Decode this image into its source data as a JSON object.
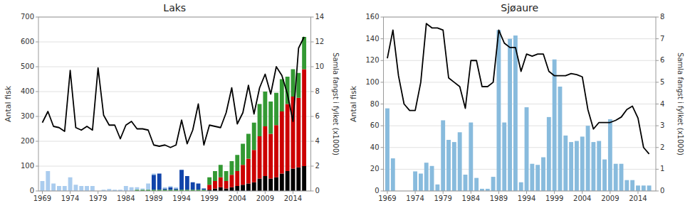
{
  "chart_data": [
    {
      "type": "bar",
      "title": "Laks",
      "stacked": true,
      "grid": true,
      "ylabel": "Antal fisk",
      "y2label": "Samla fangst i fylket (x1000)",
      "x": [
        1969,
        1970,
        1971,
        1972,
        1973,
        1974,
        1975,
        1976,
        1977,
        1978,
        1979,
        1980,
        1981,
        1982,
        1983,
        1984,
        1985,
        1986,
        1987,
        1988,
        1989,
        1990,
        1991,
        1992,
        1993,
        1994,
        1995,
        1996,
        1997,
        1998,
        1999,
        2000,
        2001,
        2002,
        2003,
        2004,
        2005,
        2006,
        2007,
        2008,
        2009,
        2010,
        2011,
        2012,
        2013,
        2014,
        2015,
        2016
      ],
      "xlim": [
        1968.3,
        2017.2
      ],
      "xticks": [
        1969,
        1974,
        1979,
        1984,
        1989,
        1994,
        1999,
        2004,
        2009,
        2014
      ],
      "ylim": [
        0,
        700
      ],
      "yticks": [
        0,
        100,
        200,
        300,
        400,
        500,
        600,
        700
      ],
      "y2lim": [
        0,
        14
      ],
      "y2ticks": [
        0,
        2,
        4,
        6,
        8,
        10,
        12,
        14
      ],
      "series": [
        {
          "color": "#000000",
          "values": [
            0,
            0,
            0,
            0,
            0,
            0,
            0,
            0,
            0,
            0,
            0,
            0,
            0,
            0,
            0,
            0,
            0,
            0,
            0,
            0,
            0,
            0,
            0,
            0,
            0,
            0,
            0,
            0,
            0,
            0,
            5,
            10,
            15,
            10,
            15,
            20,
            25,
            30,
            35,
            50,
            60,
            50,
            55,
            70,
            80,
            90,
            95,
            100
          ]
        },
        {
          "color": "#cc0000",
          "values": [
            0,
            0,
            0,
            0,
            0,
            0,
            0,
            0,
            0,
            0,
            0,
            0,
            0,
            0,
            0,
            0,
            0,
            0,
            0,
            0,
            0,
            0,
            0,
            0,
            0,
            0,
            0,
            0,
            0,
            0,
            20,
            30,
            40,
            30,
            50,
            60,
            80,
            100,
            130,
            170,
            200,
            180,
            210,
            250,
            270,
            290,
            280,
            390
          ]
        },
        {
          "color": "#339933",
          "values": [
            0,
            0,
            0,
            0,
            0,
            0,
            0,
            0,
            0,
            0,
            0,
            0,
            0,
            0,
            0,
            0,
            0,
            5,
            5,
            5,
            5,
            5,
            5,
            5,
            5,
            5,
            5,
            5,
            5,
            5,
            30,
            40,
            50,
            40,
            55,
            65,
            85,
            100,
            110,
            130,
            140,
            130,
            130,
            130,
            110,
            110,
            100,
            130
          ]
        },
        {
          "color": "#1144aa",
          "values": [
            0,
            0,
            0,
            0,
            0,
            0,
            0,
            0,
            0,
            0,
            0,
            0,
            0,
            0,
            0,
            0,
            0,
            0,
            0,
            0,
            60,
            65,
            5,
            10,
            5,
            80,
            55,
            30,
            25,
            5,
            0,
            0,
            0,
            0,
            0,
            0,
            0,
            0,
            0,
            0,
            0,
            0,
            0,
            0,
            0,
            0,
            0,
            0
          ]
        },
        {
          "color": "#aaccee",
          "values": [
            40,
            80,
            30,
            20,
            20,
            55,
            25,
            20,
            20,
            20,
            0,
            5,
            8,
            5,
            5,
            20,
            15,
            10,
            5,
            25,
            5,
            0,
            5,
            5,
            5,
            0,
            0,
            0,
            0,
            0,
            0,
            0,
            0,
            0,
            0,
            0,
            0,
            0,
            0,
            0,
            0,
            0,
            0,
            0,
            0,
            0,
            0,
            0
          ]
        },
        {
          "type": "line",
          "axis": "y2",
          "color": "#000000",
          "values": [
            5.5,
            6.4,
            5.2,
            5.1,
            4.8,
            9.7,
            5.1,
            4.9,
            5.2,
            4.9,
            9.9,
            6.1,
            5.3,
            5.3,
            4.2,
            5.3,
            5.6,
            5.0,
            5.0,
            4.9,
            3.7,
            3.6,
            3.7,
            3.5,
            3.7,
            5.7,
            3.8,
            4.9,
            7.0,
            3.7,
            5.3,
            5.2,
            5.1,
            6.3,
            8.3,
            5.4,
            6.3,
            8.5,
            6.2,
            8.3,
            9.4,
            7.8,
            10.0,
            9.3,
            7.8,
            5.6,
            11.5,
            12.4
          ]
        }
      ]
    },
    {
      "type": "bar",
      "title": "Sjøaure",
      "grid": true,
      "ylabel": "Antal fisk",
      "y2label": "Samla fangst i fylket (x1000)",
      "x": [
        1969,
        1970,
        1971,
        1972,
        1973,
        1974,
        1975,
        1976,
        1977,
        1978,
        1979,
        1980,
        1981,
        1982,
        1983,
        1984,
        1985,
        1986,
        1987,
        1988,
        1989,
        1990,
        1991,
        1992,
        1993,
        1994,
        1995,
        1996,
        1997,
        1998,
        1999,
        2000,
        2001,
        2002,
        2003,
        2004,
        2005,
        2006,
        2007,
        2008,
        2009,
        2010,
        2011,
        2012,
        2013,
        2014,
        2015,
        2016
      ],
      "xlim": [
        1968.3,
        2017.2
      ],
      "xticks": [
        1969,
        1974,
        1979,
        1984,
        1989,
        1994,
        1999,
        2004,
        2009,
        2014
      ],
      "ylim": [
        0,
        160
      ],
      "yticks": [
        0,
        20,
        40,
        60,
        80,
        100,
        120,
        140,
        160
      ],
      "y2lim": [
        0,
        8
      ],
      "y2ticks": [
        0,
        1,
        2,
        3,
        4,
        5,
        6,
        7,
        8
      ],
      "series": [
        {
          "color": "#88bbdd",
          "values": [
            76,
            30,
            0,
            0,
            0,
            18,
            16,
            26,
            23,
            6,
            65,
            47,
            45,
            54,
            15,
            63,
            12,
            2,
            2,
            13,
            148,
            63,
            140,
            143,
            8,
            77,
            25,
            24,
            31,
            68,
            121,
            96,
            51,
            45,
            46,
            50,
            60,
            45,
            46,
            29,
            66,
            25,
            25,
            10,
            10,
            5,
            5,
            5
          ]
        },
        {
          "type": "line",
          "axis": "y2",
          "color": "#000000",
          "values": [
            6.1,
            7.4,
            5.3,
            4.0,
            3.7,
            3.7,
            5.0,
            7.7,
            7.5,
            7.5,
            7.4,
            5.2,
            5.0,
            4.8,
            3.8,
            6.0,
            6.0,
            4.8,
            4.8,
            5.0,
            7.4,
            6.8,
            6.6,
            6.6,
            5.5,
            6.3,
            6.2,
            6.3,
            6.3,
            5.5,
            5.3,
            5.3,
            5.3,
            5.4,
            5.35,
            5.25,
            3.75,
            2.85,
            3.15,
            3.15,
            3.15,
            3.25,
            3.4,
            3.75,
            3.9,
            3.35,
            2.0,
            1.7
          ]
        }
      ]
    }
  ]
}
